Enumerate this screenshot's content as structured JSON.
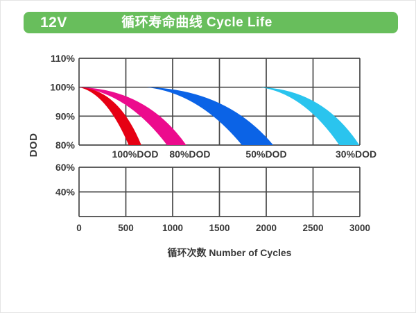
{
  "header": {
    "product_label": "12V",
    "title": "循环寿命曲线 Cycle Life",
    "bg_color": "#68be5c",
    "text_color": "#ffffff"
  },
  "chart_data": {
    "type": "area",
    "title": "循环寿命曲线 Cycle Life",
    "xlabel": "循环次数 Number of Cycles",
    "ylabel": "DOD",
    "x_ticks": [
      {
        "label": "0",
        "value": 0
      },
      {
        "label": "500",
        "value": 500
      },
      {
        "label": "1000",
        "value": 1000
      },
      {
        "label": "1500",
        "value": 1500
      },
      {
        "label": "2000",
        "value": 2000
      },
      {
        "label": "2500",
        "value": 2500
      },
      {
        "label": "3000",
        "value": 3000
      }
    ],
    "x_range": [
      0,
      3000
    ],
    "grid": true,
    "grid_color": "#474747",
    "text_color": "#383838",
    "panels": [
      {
        "y_range": [
          80,
          110
        ],
        "y_grid_step": 10,
        "y_ticks": [
          {
            "label": "110%",
            "value": 110
          },
          {
            "label": "100%",
            "value": 100
          },
          {
            "label": "90%",
            "value": 90
          },
          {
            "label": "80%",
            "value": 80
          }
        ]
      },
      {
        "y_range": [
          20,
          60
        ],
        "y_grid_step": 20,
        "y_ticks": [
          {
            "label": "60%",
            "value": 60
          },
          {
            "label": "40%",
            "value": 40
          }
        ]
      }
    ],
    "series": [
      {
        "name": "100%DOD",
        "color": "#e60013",
        "start": {
          "cycles": 0,
          "pct": 100
        },
        "end_pct": 80,
        "end_cycles_range": [
          530,
          665
        ],
        "label_cycles": 600
      },
      {
        "name": "80%DOD",
        "color": "#ec0b8d",
        "start": {
          "cycles": 0,
          "pct": 100
        },
        "end_pct": 80,
        "end_cycles_range": [
          940,
          1145
        ],
        "label_cycles": 1185
      },
      {
        "name": "50%DOD",
        "color": "#0b63e6",
        "start": {
          "cycles": 720,
          "pct": 100
        },
        "end_pct": 80,
        "end_cycles_range": [
          1740,
          2075
        ],
        "label_cycles": 2000
      },
      {
        "name": "30%DOD",
        "color": "#2ac4ee",
        "start": {
          "cycles": 1930,
          "pct": 100
        },
        "end_pct": 80,
        "end_cycles_range": [
          2780,
          2995
        ],
        "label_cycles": 2960
      }
    ],
    "draw_order": [
      2,
      3,
      1,
      0
    ]
  }
}
